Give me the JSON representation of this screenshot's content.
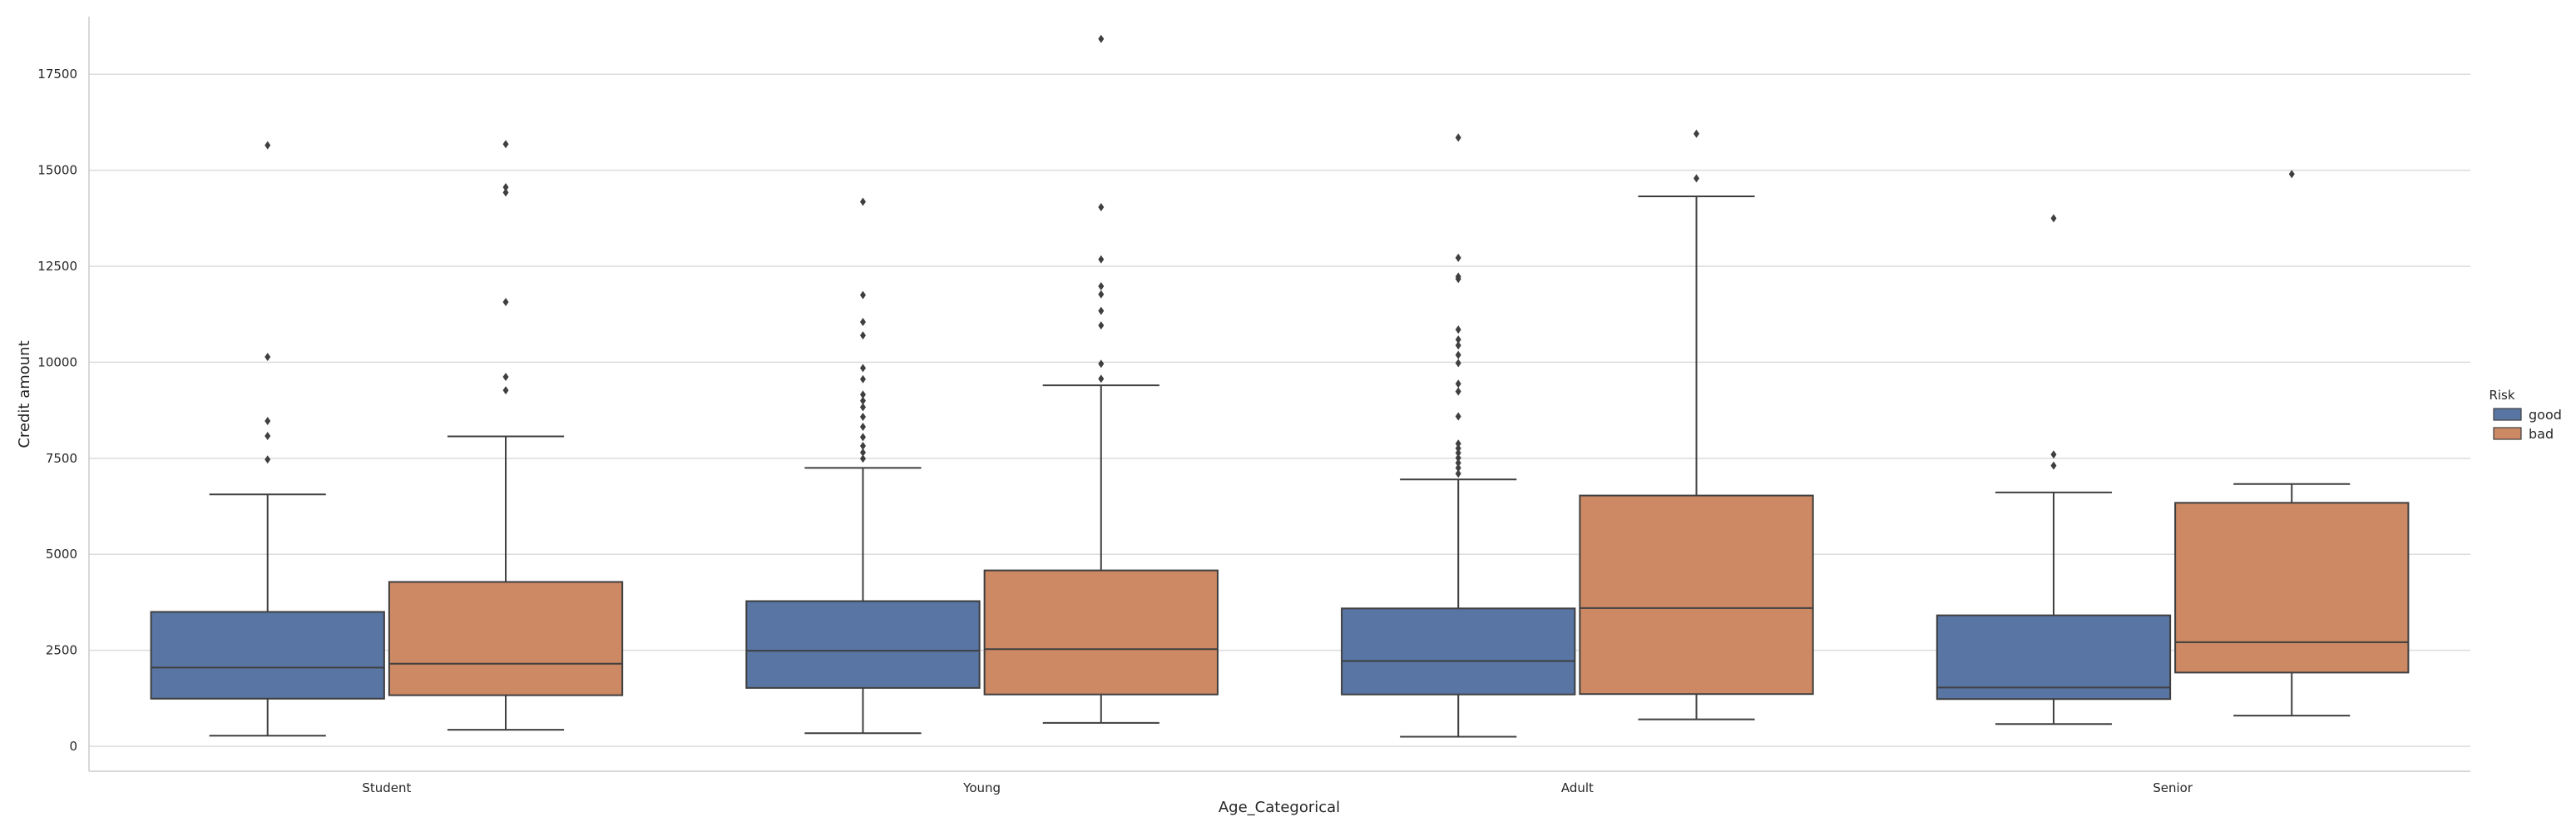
{
  "chart_data": {
    "type": "box",
    "xlabel": "Age_Categorical",
    "ylabel": "Credit amount",
    "ylim": [
      -650,
      19000
    ],
    "yticks": [
      0,
      2500,
      5000,
      7500,
      10000,
      12500,
      15000,
      17500
    ],
    "ytick_labels": [
      "0",
      "2500",
      "5000",
      "7500",
      "10000",
      "12500",
      "15000",
      "17500"
    ],
    "grid": "horizontal",
    "legend": {
      "title": "Risk",
      "placement": "right"
    },
    "categories": [
      "Student",
      "Young",
      "Adult",
      "Senior"
    ],
    "series": [
      {
        "name": "good",
        "color": "#5875a4",
        "boxes": [
          {
            "category": "Student",
            "whisker_low": 276,
            "q1": 1240,
            "median": 2050,
            "q3": 3500,
            "whisker_high": 6560,
            "outliers": [
              7470,
              8080,
              8470,
              10140,
              15650
            ]
          },
          {
            "category": "Young",
            "whisker_low": 340,
            "q1": 1520,
            "median": 2490,
            "q3": 3780,
            "whisker_high": 7250,
            "outliers": [
              7490,
              7650,
              7820,
              8050,
              8320,
              8580,
              8830,
              9000,
              9160,
              9560,
              9850,
              10700,
              11050,
              11750,
              14180
            ]
          },
          {
            "category": "Adult",
            "whisker_low": 250,
            "q1": 1350,
            "median": 2220,
            "q3": 3590,
            "whisker_high": 6950,
            "outliers": [
              7100,
              7250,
              7380,
              7510,
              7640,
              7760,
              7880,
              8590,
              9240,
              9440,
              9980,
              10190,
              10440,
              10590,
              10850,
              12170,
              12230,
              12720,
              15850
            ]
          },
          {
            "category": "Senior",
            "whisker_low": 580,
            "q1": 1230,
            "median": 1530,
            "q3": 3410,
            "whisker_high": 6610,
            "outliers": [
              7310,
              7600,
              13750
            ]
          }
        ]
      },
      {
        "name": "bad",
        "color": "#cc8963",
        "boxes": [
          {
            "category": "Student",
            "whisker_low": 430,
            "q1": 1330,
            "median": 2150,
            "q3": 4280,
            "whisker_high": 8070,
            "outliers": [
              9270,
              9620,
              11570,
              14420,
              14560,
              15680
            ]
          },
          {
            "category": "Young",
            "whisker_low": 610,
            "q1": 1350,
            "median": 2530,
            "q3": 4580,
            "whisker_high": 9400,
            "outliers": [
              9570,
              9960,
              10960,
              11340,
              11770,
              11980,
              12680,
              14040,
              18420
            ]
          },
          {
            "category": "Adult",
            "whisker_low": 700,
            "q1": 1360,
            "median": 3600,
            "q3": 6530,
            "whisker_high": 14320,
            "outliers": [
              14790,
              15950
            ]
          },
          {
            "category": "Senior",
            "whisker_low": 800,
            "q1": 1920,
            "median": 2710,
            "q3": 6340,
            "whisker_high": 6830,
            "outliers": [
              14900
            ]
          }
        ]
      }
    ]
  }
}
